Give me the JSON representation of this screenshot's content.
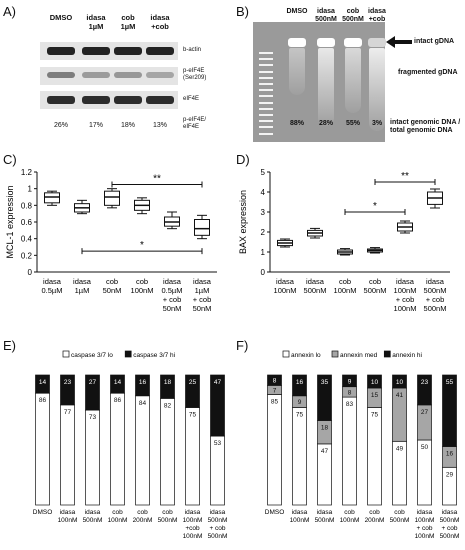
{
  "panels": {
    "a": "A)",
    "b": "B)",
    "c": "C)",
    "d": "D)",
    "e": "E)",
    "f": "F)"
  },
  "western_blot": {
    "lanes": [
      "DMSO",
      "idasa\n1µM",
      "cob\n1µM",
      "idasa\n+cob"
    ],
    "rows": [
      "b-actin",
      "p-eIF4E\n(Ser209)",
      "eIF4E",
      "p-eIF4E/\neIF4E"
    ],
    "ratios": [
      "26%",
      "17%",
      "18%",
      "13%"
    ],
    "band_intensity": {
      "b-actin": [
        1.0,
        1.0,
        1.0,
        1.0
      ],
      "p-eIF4E": [
        0.55,
        0.4,
        0.42,
        0.35
      ],
      "eIF4E": [
        0.95,
        0.95,
        0.95,
        0.95
      ]
    }
  },
  "gel": {
    "lanes": [
      "DMSO",
      "idasa\n500nM",
      "cob\n500nM",
      "idasa\n+cob"
    ],
    "labels": {
      "intact": "intact gDNA",
      "fragmented": "fragmented gDNA",
      "ratio": "intact genomic DNA /\ntotal genomic DNA"
    },
    "ratios": [
      "88%",
      "28%",
      "55%",
      "3%"
    ]
  },
  "chart_data": [
    {
      "panel": "C",
      "type": "boxplot",
      "ylabel": "MCL-1 expression",
      "ylim": [
        0,
        1.2
      ],
      "yticks": [
        "0",
        "0.2",
        "0.4",
        "0.6",
        "0.8",
        "1",
        "1.2"
      ],
      "categories": [
        "idasa\n0.5µM",
        "idasa\n1µM",
        "cob\n50nM",
        "cob\n100nM",
        "idasa\n0.5µM\n+ cob\n50nM",
        "idasa\n1µM\n+ cob\n50nM"
      ],
      "boxes": [
        {
          "min": 0.8,
          "q1": 0.83,
          "median": 0.9,
          "q3": 0.95,
          "max": 0.97
        },
        {
          "min": 0.7,
          "q1": 0.72,
          "median": 0.77,
          "q3": 0.82,
          "max": 0.86
        },
        {
          "min": 0.77,
          "q1": 0.8,
          "median": 0.9,
          "q3": 0.97,
          "max": 1.0
        },
        {
          "min": 0.7,
          "q1": 0.74,
          "median": 0.8,
          "q3": 0.86,
          "max": 0.89
        },
        {
          "min": 0.52,
          "q1": 0.55,
          "median": 0.6,
          "q3": 0.66,
          "max": 0.72
        },
        {
          "min": 0.4,
          "q1": 0.44,
          "median": 0.52,
          "q3": 0.63,
          "max": 0.68
        }
      ],
      "significance": [
        {
          "from": 2,
          "to": 5,
          "y": 1.05,
          "label": "**"
        },
        {
          "from": 1,
          "to": 5,
          "y": 0.25,
          "label": "*"
        }
      ]
    },
    {
      "panel": "D",
      "type": "boxplot",
      "ylabel": "BAX expression",
      "ylim": [
        0,
        5
      ],
      "yticks": [
        "0",
        "1",
        "2",
        "3",
        "4",
        "5"
      ],
      "categories": [
        "idasa\n100nM",
        "idasa\n500nM",
        "cob\n100nM",
        "cob\n500nM",
        "idasa\n100nM\n+ cob\n100nM",
        "idasa\n500nM\n+ cob\n500nM"
      ],
      "boxes": [
        {
          "min": 1.25,
          "q1": 1.32,
          "median": 1.45,
          "q3": 1.58,
          "max": 1.65
        },
        {
          "min": 1.7,
          "q1": 1.8,
          "median": 1.95,
          "q3": 2.08,
          "max": 2.18
        },
        {
          "min": 0.85,
          "q1": 0.9,
          "median": 1.0,
          "q3": 1.1,
          "max": 1.17
        },
        {
          "min": 0.95,
          "q1": 1.0,
          "median": 1.08,
          "q3": 1.15,
          "max": 1.22
        },
        {
          "min": 1.95,
          "q1": 2.05,
          "median": 2.25,
          "q3": 2.45,
          "max": 2.55
        },
        {
          "min": 3.2,
          "q1": 3.38,
          "median": 3.7,
          "q3": 4.0,
          "max": 4.15
        }
      ],
      "significance": [
        {
          "from": 3,
          "to": 5,
          "y": 4.5,
          "label": "**"
        },
        {
          "from": 2,
          "to": 4,
          "y": 3.0,
          "label": "*"
        }
      ]
    },
    {
      "panel": "E",
      "type": "bar",
      "stacked": true,
      "legend": [
        "caspase 3/7 lo",
        "caspase 3/7 hi"
      ],
      "legend_colors": [
        "#ffffff",
        "#111111"
      ],
      "categories": [
        "DMSO",
        "idasa\n100nM",
        "idasa\n500nM",
        "cob\n100nM",
        "cob\n200nM",
        "cob\n500nM",
        "idasa\n100nM\n+cob\n100nM",
        "idasa\n500nM\n+ cob\n500nM"
      ],
      "series": [
        {
          "name": "caspase 3/7 lo",
          "values": [
            86,
            77,
            73,
            86,
            84,
            82,
            75,
            53
          ]
        },
        {
          "name": "caspase 3/7 hi",
          "values": [
            14,
            23,
            27,
            14,
            16,
            18,
            25,
            47
          ]
        }
      ]
    },
    {
      "panel": "F",
      "type": "bar",
      "stacked": true,
      "legend": [
        "annexin lo",
        "annexin med",
        "annexin hi"
      ],
      "legend_colors": [
        "#ffffff",
        "#a6a6a6",
        "#111111"
      ],
      "categories": [
        "DMSO",
        "idasa\n100nM",
        "idasa\n500nM",
        "cob\n100nM",
        "cob\n200nM",
        "cob\n500nM",
        "idasa\n100nM\n+ cob\n100nM",
        "idasa\n500nM\n+ cob\n500nM"
      ],
      "series": [
        {
          "name": "annexin lo",
          "values": [
            85,
            75,
            47,
            83,
            75,
            49,
            50,
            29
          ]
        },
        {
          "name": "annexin med",
          "values": [
            7,
            9,
            18,
            8,
            15,
            41,
            27,
            16
          ]
        },
        {
          "name": "annexin hi",
          "values": [
            8,
            16,
            35,
            9,
            10,
            10,
            23,
            55
          ]
        }
      ]
    }
  ]
}
